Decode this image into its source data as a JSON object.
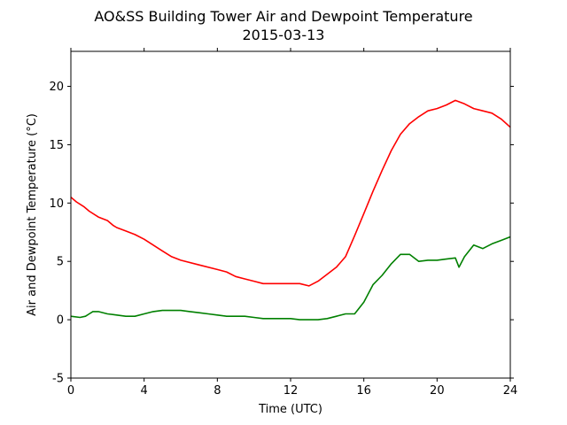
{
  "chart_data": {
    "type": "line",
    "title": "AO&SS Building Tower Air and Dewpoint Temperature",
    "subtitle": "2015-03-13",
    "xlabel": "Time (UTC)",
    "ylabel": "Air and Dewpoint Temperature (°C)",
    "xlim": [
      0,
      24
    ],
    "ylim": [
      -5,
      23
    ],
    "xticks": [
      0,
      4,
      8,
      12,
      16,
      20,
      24
    ],
    "yticks": [
      -5,
      0,
      5,
      10,
      15,
      20
    ],
    "grid": false,
    "legend": "none",
    "series": [
      {
        "color": "#ff0000",
        "x": [
          0,
          0.3,
          0.7,
          1.0,
          1.5,
          2.0,
          2.3,
          2.5,
          3.0,
          3.5,
          4.0,
          4.5,
          5.0,
          5.5,
          6.0,
          7.0,
          8.0,
          8.5,
          9.0,
          9.5,
          10.0,
          10.5,
          11.0,
          11.5,
          12.0,
          12.5,
          13.0,
          13.5,
          14.0,
          14.5,
          15.0,
          15.5,
          16.0,
          16.5,
          17.0,
          17.5,
          18.0,
          18.5,
          19.0,
          19.5,
          20.0,
          20.5,
          21.0,
          21.5,
          22.0,
          22.5,
          23.0,
          23.5,
          24.0
        ],
        "y": [
          10.5,
          10.1,
          9.7,
          9.3,
          8.8,
          8.5,
          8.1,
          7.9,
          7.6,
          7.3,
          6.9,
          6.4,
          5.9,
          5.4,
          5.1,
          4.7,
          4.3,
          4.1,
          3.7,
          3.5,
          3.3,
          3.1,
          3.1,
          3.1,
          3.1,
          3.1,
          2.9,
          3.3,
          3.9,
          4.5,
          5.4,
          7.2,
          9.1,
          11.0,
          12.8,
          14.5,
          15.9,
          16.8,
          17.4,
          17.9,
          18.1,
          18.4,
          18.8,
          18.5,
          18.1,
          17.9,
          17.7,
          17.2,
          16.5
        ]
      },
      {
        "color": "#008000",
        "x": [
          0,
          0.5,
          0.8,
          1.0,
          1.2,
          1.5,
          2.0,
          2.5,
          3.0,
          3.5,
          4.0,
          4.5,
          5.0,
          5.5,
          6.0,
          6.5,
          7.0,
          7.5,
          8.0,
          8.5,
          9.0,
          9.5,
          10.0,
          10.5,
          11.0,
          11.5,
          12.0,
          12.5,
          13.0,
          13.5,
          14.0,
          14.5,
          15.0,
          15.5,
          16.0,
          16.5,
          17.0,
          17.5,
          18.0,
          18.5,
          19.0,
          19.5,
          20.0,
          20.5,
          21.0,
          21.2,
          21.5,
          22.0,
          22.5,
          23.0,
          23.5,
          24.0
        ],
        "y": [
          0.3,
          0.2,
          0.3,
          0.5,
          0.7,
          0.7,
          0.5,
          0.4,
          0.3,
          0.3,
          0.5,
          0.7,
          0.8,
          0.8,
          0.8,
          0.7,
          0.6,
          0.5,
          0.4,
          0.3,
          0.3,
          0.3,
          0.2,
          0.1,
          0.1,
          0.1,
          0.1,
          0.0,
          0.0,
          0.0,
          0.1,
          0.3,
          0.5,
          0.5,
          1.5,
          3.0,
          3.8,
          4.8,
          5.6,
          5.6,
          5.0,
          5.1,
          5.1,
          5.2,
          5.3,
          4.5,
          5.4,
          6.4,
          6.1,
          6.5,
          6.8,
          7.1
        ]
      }
    ]
  }
}
